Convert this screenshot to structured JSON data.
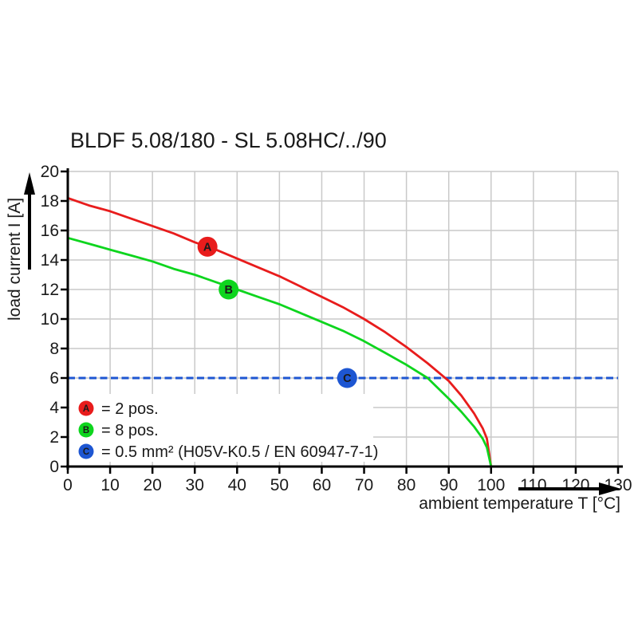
{
  "page": {
    "background": "#ffffff"
  },
  "chart_data": {
    "type": "line",
    "title": "BLDF 5.08/180 - SL 5.08HC/../90",
    "xlabel": "ambient temperature T [°C]",
    "ylabel": "load current I [A]",
    "xlim": [
      0,
      130
    ],
    "ylim": [
      0,
      20
    ],
    "x_ticks": [
      0,
      10,
      20,
      30,
      40,
      50,
      60,
      70,
      80,
      90,
      100,
      110,
      120,
      130
    ],
    "y_ticks": [
      0,
      2,
      4,
      6,
      8,
      10,
      12,
      14,
      16,
      18,
      20
    ],
    "grid": true,
    "legend_position": "bottom-left",
    "colors": {
      "grid": "#c9c9c9",
      "axis": "#000000",
      "text": "#1a1a1a",
      "red": "#e81c1c",
      "green": "#0ed51e",
      "blue": "#1d56d2",
      "marker_letter": "#ffffff"
    },
    "series": [
      {
        "name": "A",
        "label": "2 pos.",
        "color": "#e81c1c",
        "points": [
          [
            0,
            18.2
          ],
          [
            5,
            17.7
          ],
          [
            10,
            17.3
          ],
          [
            15,
            16.8
          ],
          [
            20,
            16.3
          ],
          [
            25,
            15.8
          ],
          [
            30,
            15.2
          ],
          [
            35,
            14.7
          ],
          [
            40,
            14.1
          ],
          [
            45,
            13.5
          ],
          [
            50,
            12.9
          ],
          [
            55,
            12.2
          ],
          [
            60,
            11.5
          ],
          [
            65,
            10.8
          ],
          [
            70,
            10.0
          ],
          [
            75,
            9.1
          ],
          [
            80,
            8.1
          ],
          [
            85,
            7.0
          ],
          [
            90,
            5.8
          ],
          [
            93,
            4.8
          ],
          [
            96,
            3.6
          ],
          [
            98,
            2.6
          ],
          [
            99,
            1.9
          ],
          [
            100,
            0
          ]
        ]
      },
      {
        "name": "B",
        "label": "8 pos.",
        "color": "#0ed51e",
        "points": [
          [
            0,
            15.5
          ],
          [
            5,
            15.1
          ],
          [
            10,
            14.7
          ],
          [
            15,
            14.3
          ],
          [
            20,
            13.9
          ],
          [
            25,
            13.4
          ],
          [
            30,
            13.0
          ],
          [
            35,
            12.5
          ],
          [
            40,
            12.0
          ],
          [
            45,
            11.5
          ],
          [
            50,
            11.0
          ],
          [
            55,
            10.4
          ],
          [
            60,
            9.8
          ],
          [
            65,
            9.2
          ],
          [
            70,
            8.5
          ],
          [
            75,
            7.7
          ],
          [
            80,
            6.9
          ],
          [
            85,
            6.0
          ],
          [
            90,
            4.6
          ],
          [
            93,
            3.7
          ],
          [
            96,
            2.7
          ],
          [
            98,
            1.9
          ],
          [
            99,
            1.3
          ],
          [
            100,
            0
          ]
        ]
      }
    ],
    "reference_line": {
      "name": "C",
      "label": "0.5 mm² (H05V-K0.5 / EN 60947-7-1)",
      "y": 6,
      "color": "#1d56d2",
      "style": "dashed"
    },
    "curve_markers": [
      {
        "letter": "A",
        "x": 33,
        "y": 14.9,
        "color": "#e81c1c"
      },
      {
        "letter": "B",
        "x": 38,
        "y": 12.0,
        "color": "#0ed51e"
      },
      {
        "letter": "C",
        "x": 66,
        "y": 6.0,
        "color": "#1d56d2"
      }
    ],
    "legend": {
      "items": [
        {
          "letter": "A",
          "color": "#e81c1c",
          "text": "= 2 pos."
        },
        {
          "letter": "B",
          "color": "#0ed51e",
          "text": "= 8 pos."
        },
        {
          "letter": "C",
          "color": "#1d56d2",
          "text": "= 0.5 mm² (H05V-K0.5 / EN 60947-7-1)"
        }
      ]
    }
  }
}
